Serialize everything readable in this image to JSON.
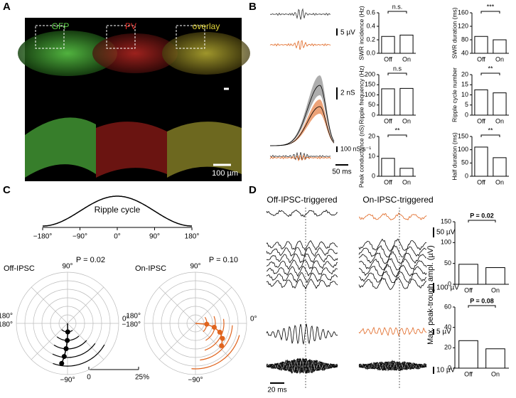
{
  "panels": {
    "A": {
      "label": "A",
      "channels": [
        "GFP",
        "PV",
        "overlay"
      ],
      "scale_bar": "100 µm"
    },
    "B": {
      "label": "B",
      "trace_scales": [
        "5 µV",
        "2 nS",
        "100 nS s⁻¹",
        "50 ms"
      ],
      "charts": [
        {
          "ylabel": "SWR incidence (Hz)",
          "categories": [
            "Off",
            "On"
          ],
          "values": [
            0.25,
            0.27
          ],
          "ylim": [
            0,
            0.6
          ],
          "yticks": [
            {
              "value": 0,
              "label": "0.0"
            },
            0.2,
            0.4,
            0.6
          ],
          "significance": "n.s."
        },
        {
          "ylabel": "Ripple frequency (Hz)",
          "categories": [
            "Off",
            "On"
          ],
          "values": [
            130,
            132
          ],
          "ylim": [
            0,
            200
          ],
          "yticks": [
            0,
            50,
            100,
            150,
            200
          ],
          "significance": "n.s"
        },
        {
          "ylabel": "Peak conductance (nS)",
          "categories": [
            "Off",
            "On"
          ],
          "values": [
            9,
            4
          ],
          "ylim": [
            0,
            20
          ],
          "yticks": [
            0,
            10,
            20
          ],
          "significance": "**"
        },
        {
          "ylabel": "SWR duration (ms)",
          "categories": [
            "Off",
            "On"
          ],
          "values": [
            90,
            80
          ],
          "ylim": [
            40,
            160
          ],
          "yticks": [
            40,
            80,
            120,
            160
          ],
          "significance": "***"
        },
        {
          "ylabel": "Ripple cycle number",
          "categories": [
            "Off",
            "On"
          ],
          "values": [
            12.5,
            11
          ],
          "ylim": [
            0,
            20
          ],
          "yticks": [
            0,
            5,
            10,
            15,
            20
          ],
          "significance": "**"
        },
        {
          "ylabel": "Half duration (ms)",
          "categories": [
            "Off",
            "On"
          ],
          "values": [
            110,
            70
          ],
          "ylim": [
            0,
            150
          ],
          "yticks": [
            0,
            50,
            100,
            150
          ],
          "significance": "**"
        }
      ]
    },
    "C": {
      "label": "C",
      "title": "Ripple cycle",
      "xticks": [
        "−180°",
        "−90°",
        "0°",
        "90°",
        "180°"
      ],
      "polar": [
        {
          "title": "Off-IPSC",
          "p": "P = 0.02",
          "labels": [
            "90°",
            "0°",
            "180°",
            "−180°",
            "−90°"
          ]
        },
        {
          "title": "On-IPSC",
          "p": "P = 0.10",
          "labels": [
            "90°",
            "0°",
            "180°",
            "−180°",
            "−90°"
          ]
        }
      ],
      "scale": [
        "0",
        "25%"
      ]
    },
    "D": {
      "label": "D",
      "titles": [
        "Off-IPSC-triggered",
        "On-IPSC-triggered"
      ],
      "trace_scales": [
        "50 µV",
        "100 µV",
        "5 µV",
        "10 µV",
        "20 ms"
      ],
      "ylabel": "Max. peak-trough ampl. (µV)",
      "charts": [
        {
          "categories": [
            "Off",
            "On"
          ],
          "values": [
            48,
            40
          ],
          "ylim": [
            0,
            150
          ],
          "yticks": [
            0,
            50,
            100,
            150
          ],
          "significance": "P = 0.02"
        },
        {
          "categories": [
            "Off",
            "On"
          ],
          "values": [
            27,
            19
          ],
          "ylim": [
            0,
            60
          ],
          "yticks": [
            0,
            20,
            40,
            60
          ],
          "significance": "P = 0.08"
        }
      ]
    }
  }
}
